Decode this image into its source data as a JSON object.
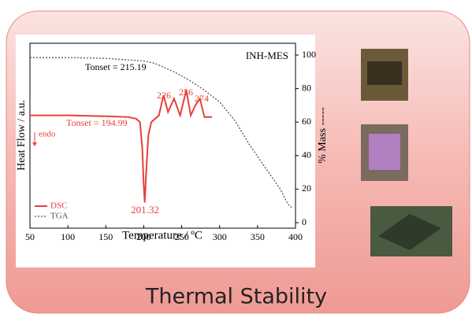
{
  "chart_data": {
    "type": "line",
    "caption": "Thermal Stability",
    "panel_label": "INH-MES",
    "xlabel": "Temperature / ºC",
    "ylabel_left": "Heat Flow / a.u.",
    "ylabel_right": "% Mass -----",
    "y_axis_side": "right",
    "xlim": [
      50,
      400
    ],
    "xticks": [
      50,
      100,
      150,
      200,
      250,
      300,
      350,
      400
    ],
    "ylim": [
      0,
      100
    ],
    "yticks": [
      0,
      20,
      40,
      60,
      80,
      100
    ],
    "annotations": [
      "Tonset = 215.19",
      "Tonset = 194.99",
      "endo",
      "201.32",
      "226",
      "256",
      "274"
    ],
    "series": [
      {
        "name": "DSC",
        "color": "#e8403a",
        "style": "solid",
        "x": [
          50,
          100,
          150,
          180,
          190,
          195,
          198,
          200,
          201.32,
          203,
          206,
          210,
          220,
          226,
          232,
          240,
          248,
          256,
          262,
          268,
          274,
          280,
          290
        ],
        "values": [
          64,
          64,
          63.5,
          63,
          62,
          60,
          45,
          22,
          12,
          28,
          52,
          60,
          64,
          76,
          66,
          74,
          64,
          79,
          64,
          70,
          74,
          63,
          63
        ]
      },
      {
        "name": "TGA",
        "color": "#555555",
        "style": "dotted",
        "x": [
          50,
          100,
          150,
          200,
          215,
          240,
          260,
          280,
          300,
          320,
          340,
          360,
          380,
          390,
          395
        ],
        "values": [
          98.5,
          98.5,
          98,
          96.5,
          95,
          90,
          85,
          79,
          72,
          61,
          46,
          33,
          20,
          11,
          9
        ]
      }
    ]
  }
}
